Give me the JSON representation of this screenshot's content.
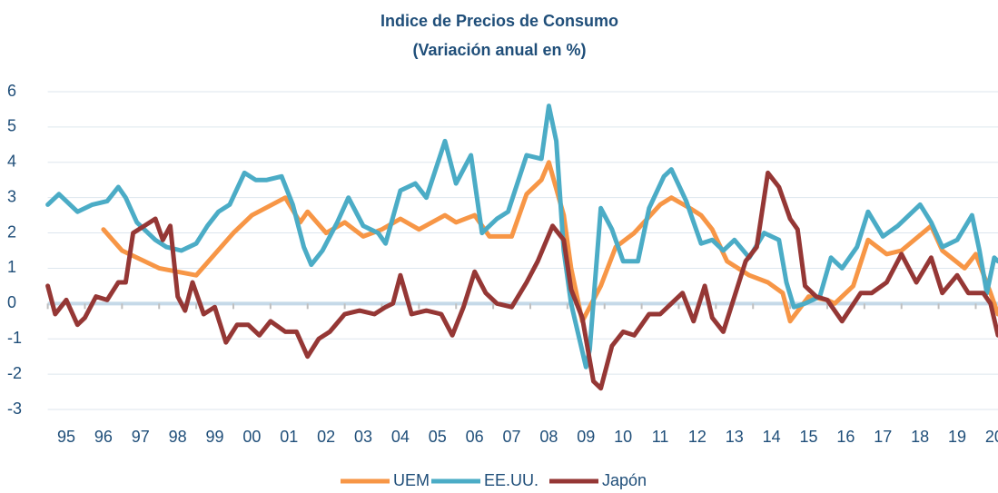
{
  "chart_data": {
    "type": "line",
    "title": "Indice de Precios de Consumo",
    "subtitle": "(Variación anual en %)",
    "xlim": [
      1995,
      2020.6
    ],
    "xticks": [
      {
        "value": 1995,
        "label": "95"
      },
      {
        "value": 1996,
        "label": "96"
      },
      {
        "value": 1997,
        "label": "97"
      },
      {
        "value": 1998,
        "label": "98"
      },
      {
        "value": 1999,
        "label": "99"
      },
      {
        "value": 2000,
        "label": "00"
      },
      {
        "value": 2001,
        "label": "01"
      },
      {
        "value": 2002,
        "label": "02"
      },
      {
        "value": 2003,
        "label": "03"
      },
      {
        "value": 2004,
        "label": "04"
      },
      {
        "value": 2005,
        "label": "05"
      },
      {
        "value": 2006,
        "label": "06"
      },
      {
        "value": 2007,
        "label": "07"
      },
      {
        "value": 2008,
        "label": "08"
      },
      {
        "value": 2009,
        "label": "09"
      },
      {
        "value": 2010,
        "label": "10"
      },
      {
        "value": 2011,
        "label": "11"
      },
      {
        "value": 2012,
        "label": "12"
      },
      {
        "value": 2013,
        "label": "13"
      },
      {
        "value": 2014,
        "label": "14"
      },
      {
        "value": 2015,
        "label": "15"
      },
      {
        "value": 2016,
        "label": "16"
      },
      {
        "value": 2017,
        "label": "17"
      },
      {
        "value": 2018,
        "label": "18"
      },
      {
        "value": 2019,
        "label": "19"
      },
      {
        "value": 2020,
        "label": "20"
      }
    ],
    "ylim": [
      -3,
      6
    ],
    "yticks": [
      -3,
      -2,
      -1,
      0,
      1,
      2,
      3,
      4,
      5,
      6
    ],
    "grid": true,
    "legend": "bottom",
    "series": [
      {
        "name": "UEM",
        "color": "#f79646",
        "x": [
          1996.5,
          1997,
          1998,
          1999,
          2000,
          2000.5,
          2001.4,
          2001.8,
          2002,
          2002.5,
          2003,
          2003.5,
          2004,
          2004.5,
          2005,
          2005.7,
          2006,
          2006.5,
          2006.9,
          2007.5,
          2007.9,
          2008.3,
          2008.5,
          2008.9,
          2009.1,
          2009.4,
          2009.9,
          2010.3,
          2010.8,
          2011.5,
          2011.8,
          2012.3,
          2012.6,
          2012.9,
          2013.3,
          2013.9,
          2014.4,
          2014.8,
          2015,
          2015.5,
          2016,
          2016.2,
          2016.7,
          2017.1,
          2017.6,
          2018,
          2018.8,
          2019.1,
          2019.7,
          2020,
          2020.4,
          2020.6
        ],
        "values": [
          2.1,
          1.5,
          1,
          0.8,
          2,
          2.5,
          3,
          2.3,
          2.6,
          2,
          2.3,
          1.9,
          2.1,
          2.4,
          2.1,
          2.5,
          2.3,
          2.5,
          1.9,
          1.9,
          3.1,
          3.5,
          4,
          2.5,
          1,
          -0.5,
          0.5,
          1.6,
          2,
          2.8,
          3,
          2.7,
          2.5,
          2.1,
          1.2,
          0.8,
          0.6,
          0.3,
          -0.5,
          0.2,
          0.1,
          0,
          0.5,
          1.8,
          1.4,
          1.5,
          2.2,
          1.5,
          1,
          1.4,
          0.3,
          -0.3
        ]
      },
      {
        "name": "EE.UU.",
        "color": "#4bacc6",
        "x": [
          1995,
          1995.3,
          1995.8,
          1996.2,
          1996.6,
          1996.9,
          1997.1,
          1997.4,
          1997.9,
          1998.2,
          1998.6,
          1999,
          1999.3,
          1999.6,
          1999.9,
          2000.3,
          2000.6,
          2000.9,
          2001.3,
          2001.6,
          2001.9,
          2002.1,
          2002.4,
          2002.8,
          2003.1,
          2003.5,
          2003.9,
          2004.1,
          2004.5,
          2004.9,
          2005.2,
          2005.7,
          2006,
          2006.4,
          2006.7,
          2007.1,
          2007.4,
          2007.9,
          2008.3,
          2008.5,
          2008.7,
          2008.9,
          2009.1,
          2009.5,
          2009.6,
          2009.9,
          2010.2,
          2010.5,
          2010.9,
          2011.2,
          2011.6,
          2011.8,
          2012.2,
          2012.6,
          2012.9,
          2013.2,
          2013.5,
          2013.9,
          2014.3,
          2014.7,
          2014.9,
          2015.1,
          2015.4,
          2015.8,
          2016.1,
          2016.4,
          2016.8,
          2017.1,
          2017.5,
          2017.9,
          2018.5,
          2018.8,
          2019.1,
          2019.5,
          2019.9,
          2020.1,
          2020.3,
          2020.5,
          2020.6
        ],
        "values": [
          2.8,
          3.1,
          2.6,
          2.8,
          2.9,
          3.3,
          3,
          2.3,
          1.8,
          1.6,
          1.5,
          1.7,
          2.2,
          2.6,
          2.8,
          3.7,
          3.5,
          3.5,
          3.6,
          2.8,
          1.6,
          1.1,
          1.5,
          2.3,
          3,
          2.2,
          2,
          1.7,
          3.2,
          3.4,
          3,
          4.6,
          3.4,
          4.2,
          2,
          2.4,
          2.6,
          4.2,
          4.1,
          5.6,
          4.6,
          1.5,
          0,
          -1.8,
          -1.3,
          2.7,
          2.1,
          1.2,
          1.2,
          2.7,
          3.6,
          3.8,
          2.9,
          1.7,
          1.8,
          1.5,
          1.8,
          1.3,
          2,
          1.8,
          0.6,
          -0.1,
          0,
          0.2,
          1.3,
          1,
          1.6,
          2.6,
          1.9,
          2.2,
          2.8,
          2.3,
          1.6,
          1.8,
          2.5,
          1.5,
          0.3,
          1.3,
          1.2
        ]
      },
      {
        "name": "Japón",
        "color": "#953735",
        "x": [
          1995,
          1995.2,
          1995.5,
          1995.8,
          1996,
          1996.3,
          1996.6,
          1996.9,
          1997.1,
          1997.3,
          1997.6,
          1997.9,
          1998.1,
          1998.3,
          1998.5,
          1998.7,
          1998.9,
          1999.2,
          1999.5,
          1999.8,
          2000.1,
          2000.4,
          2000.7,
          2001,
          2001.4,
          2001.7,
          2002,
          2002.3,
          2002.6,
          2003,
          2003.4,
          2003.8,
          2004.1,
          2004.3,
          2004.5,
          2004.8,
          2005.2,
          2005.6,
          2005.9,
          2006.2,
          2006.5,
          2006.8,
          2007.1,
          2007.5,
          2007.9,
          2008.2,
          2008.6,
          2008.9,
          2009.1,
          2009.4,
          2009.7,
          2009.9,
          2010.2,
          2010.5,
          2010.8,
          2011.2,
          2011.5,
          2011.8,
          2012.1,
          2012.4,
          2012.7,
          2012.9,
          2013.2,
          2013.5,
          2013.8,
          2014.1,
          2014.4,
          2014.7,
          2015,
          2015.2,
          2015.4,
          2015.7,
          2016,
          2016.4,
          2016.9,
          2017.2,
          2017.6,
          2018,
          2018.4,
          2018.8,
          2019.1,
          2019.5,
          2019.8,
          2020.2,
          2020.4,
          2020.6
        ],
        "values": [
          0.5,
          -0.3,
          0.1,
          -0.6,
          -0.4,
          0.2,
          0.1,
          0.6,
          0.6,
          2,
          2.2,
          2.4,
          1.8,
          2.2,
          0.2,
          -0.2,
          0.6,
          -0.3,
          -0.1,
          -1.1,
          -0.6,
          -0.6,
          -0.9,
          -0.5,
          -0.8,
          -0.8,
          -1.5,
          -1,
          -0.8,
          -0.3,
          -0.2,
          -0.3,
          -0.1,
          0,
          0.8,
          -0.3,
          -0.2,
          -0.3,
          -0.9,
          -0.1,
          0.9,
          0.3,
          0,
          -0.1,
          0.6,
          1.2,
          2.2,
          1.8,
          0.4,
          -0.4,
          -2.2,
          -2.4,
          -1.2,
          -0.8,
          -0.9,
          -0.3,
          -0.3,
          0,
          0.3,
          -0.5,
          0.5,
          -0.4,
          -0.8,
          0.2,
          1.2,
          1.6,
          3.7,
          3.3,
          2.4,
          2.1,
          0.5,
          0.2,
          0.1,
          -0.5,
          0.3,
          0.3,
          0.6,
          1.4,
          0.6,
          1.3,
          0.3,
          0.8,
          0.3,
          0.3,
          0,
          -0.9
        ]
      }
    ]
  }
}
